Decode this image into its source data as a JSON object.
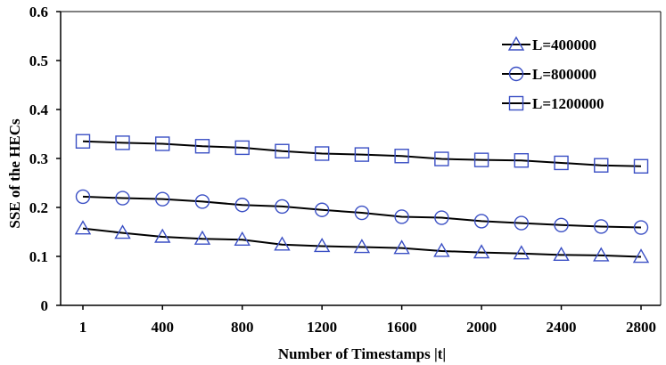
{
  "chart_data": {
    "type": "line",
    "title": "",
    "xlabel": "Number of Timestamps |t|",
    "ylabel": "SSE of the HECs",
    "xlim": [
      1,
      2800
    ],
    "ylim": [
      0,
      0.6
    ],
    "x_ticks": [
      "1",
      "400",
      "800",
      "1200",
      "1600",
      "2000",
      "2400",
      "2800"
    ],
    "x_tick_values": [
      1,
      400,
      800,
      1200,
      1600,
      2000,
      2400,
      2800
    ],
    "y_ticks": [
      "0",
      "0.1",
      "0.2",
      "0.3",
      "0.4",
      "0.5",
      "0.6"
    ],
    "y_tick_values": [
      0,
      0.1,
      0.2,
      0.3,
      0.4,
      0.5,
      0.6
    ],
    "grid": false,
    "legend_position": "top-right",
    "x": [
      1,
      200,
      400,
      600,
      800,
      1000,
      1200,
      1400,
      1600,
      1800,
      2000,
      2200,
      2400,
      2600,
      2800
    ],
    "series": [
      {
        "name": "L=400000",
        "marker": "triangle",
        "values": [
          0.157,
          0.148,
          0.14,
          0.136,
          0.134,
          0.124,
          0.121,
          0.119,
          0.117,
          0.111,
          0.108,
          0.106,
          0.103,
          0.102,
          0.099
        ]
      },
      {
        "name": "L=800000",
        "marker": "circle",
        "values": [
          0.222,
          0.219,
          0.217,
          0.212,
          0.205,
          0.202,
          0.195,
          0.189,
          0.181,
          0.179,
          0.172,
          0.168,
          0.164,
          0.161,
          0.159
        ]
      },
      {
        "name": "L=1200000",
        "marker": "square",
        "values": [
          0.335,
          0.332,
          0.33,
          0.325,
          0.322,
          0.315,
          0.31,
          0.308,
          0.305,
          0.299,
          0.297,
          0.296,
          0.291,
          0.286,
          0.284
        ]
      }
    ],
    "colors": {
      "line": "#000000",
      "marker": "#3a4fc4",
      "axis": "#000000"
    }
  }
}
